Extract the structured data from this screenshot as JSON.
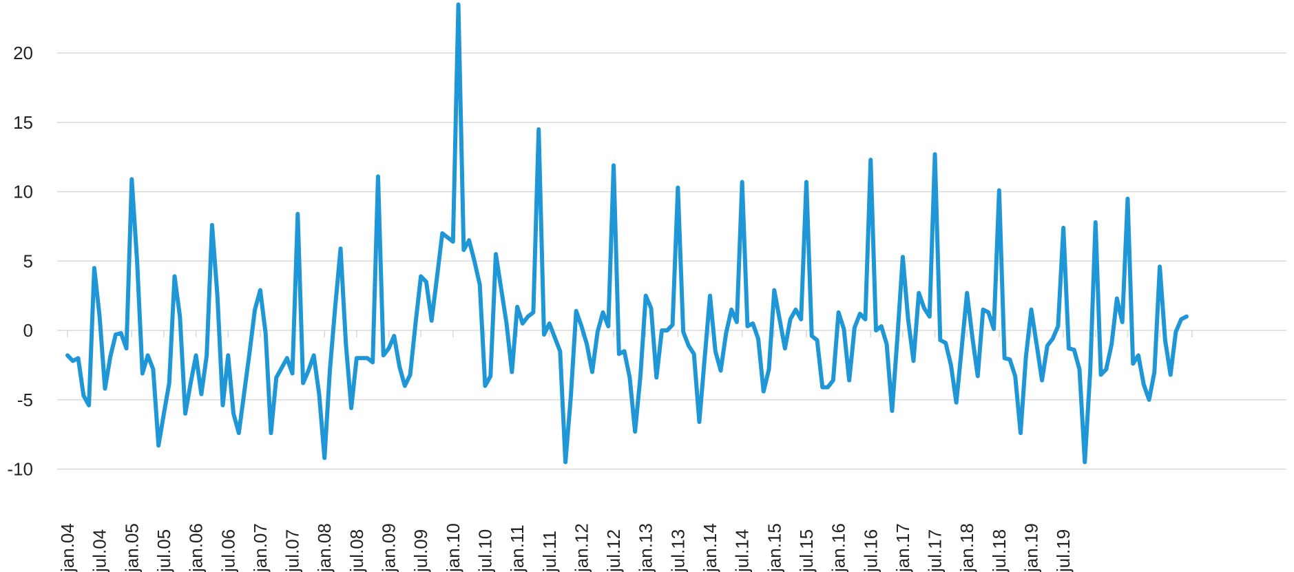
{
  "chart_data": {
    "type": "line",
    "title": "",
    "xlabel": "",
    "ylabel": "",
    "ylim": [
      -10,
      23.5
    ],
    "y_ticks": [
      20,
      15,
      10,
      5,
      0,
      -5,
      -10
    ],
    "y_tick_labels": [
      "20",
      "15",
      "10",
      "5",
      "0",
      "-5",
      "-10"
    ],
    "x_tick_labels": [
      "jan.04",
      "jul.04",
      "jan.05",
      "jul.05",
      "jan.06",
      "jul.06",
      "jan.07",
      "jul.07",
      "jan.08",
      "jul.08",
      "jan.09",
      "jul.09",
      "jan.10",
      "jul.10",
      "jan.11",
      "jul.11",
      "jan.12",
      "jul.12",
      "jan.13",
      "jul.13",
      "jan.14",
      "jul.14",
      "jan.15",
      "jul.15",
      "jan.16",
      "jul.16",
      "jan.17",
      "jul.17",
      "jan.18",
      "jul.18",
      "jan.19",
      "jul.19"
    ],
    "grid": true,
    "legend": "none",
    "series": [
      {
        "color": "#1f96d6",
        "values": [
          -1.8,
          -2.2,
          -2.0,
          -4.7,
          -5.4,
          4.5,
          1.0,
          -4.2,
          -1.9,
          -0.3,
          -0.2,
          -1.3,
          10.9,
          5.0,
          -3.1,
          -1.8,
          -2.8,
          -8.3,
          -6.0,
          -3.8,
          3.9,
          1.0,
          -6.0,
          -3.8,
          -1.8,
          -4.6,
          -1.8,
          7.6,
          2.5,
          -5.4,
          -1.8,
          -6.0,
          -7.4,
          -4.5,
          -1.6,
          1.5,
          2.9,
          -0.2,
          -7.4,
          -3.4,
          -2.7,
          -2.0,
          -3.1,
          8.4,
          -3.8,
          -2.9,
          -1.8,
          -4.6,
          -9.2,
          -2.9,
          1.7,
          5.9,
          -1.0,
          -5.6,
          -2.0,
          -2.0,
          -2.0,
          -2.3,
          11.1,
          -1.8,
          -1.3,
          -0.4,
          -2.6,
          -4.0,
          -3.2,
          0.5,
          3.9,
          3.5,
          0.7,
          3.8,
          7.0,
          6.7,
          6.4,
          23.5,
          5.8,
          6.5,
          5.0,
          3.3,
          -4.0,
          -3.3,
          5.5,
          3.0,
          0.5,
          -3.0,
          1.7,
          0.5,
          1.0,
          1.3,
          14.5,
          -0.3,
          0.5,
          -0.5,
          -1.5,
          -9.5,
          -4.8,
          1.4,
          0.3,
          -1.0,
          -3.0,
          -0.1,
          1.3,
          0.3,
          11.9,
          -1.7,
          -1.5,
          -3.4,
          -7.3,
          -3.3,
          2.5,
          1.6,
          -3.4,
          0.0,
          0.0,
          0.4,
          10.3,
          -0.1,
          -1.1,
          -1.7,
          -6.6,
          -2.0,
          2.5,
          -1.5,
          -2.9,
          -0.2,
          1.5,
          0.6,
          10.7,
          0.3,
          0.5,
          -0.6,
          -4.4,
          -2.8,
          2.9,
          0.8,
          -1.3,
          0.8,
          1.5,
          0.8,
          10.7,
          -0.4,
          -0.7,
          -4.1,
          -4.1,
          -3.6,
          1.3,
          0.1,
          -3.6,
          0.2,
          1.2,
          0.8,
          12.3,
          0.0,
          0.3,
          -1.0,
          -5.8,
          -0.5,
          5.3,
          0.8,
          -2.2,
          2.7,
          1.6,
          1.0,
          12.7,
          -0.7,
          -0.9,
          -2.5,
          -5.2,
          -1.3,
          2.7,
          -0.5,
          -3.3,
          1.5,
          1.3,
          0.1,
          10.1,
          -2.0,
          -2.1,
          -3.3,
          -7.4,
          -1.9,
          1.5,
          -1.0,
          -3.6,
          -1.1,
          -0.6,
          0.3,
          7.4,
          -1.3,
          -1.4,
          -2.8,
          -9.5,
          -3.0,
          7.8,
          -3.2,
          -2.8,
          -1.0,
          2.3,
          0.6,
          9.5,
          -2.4,
          -1.8,
          -3.9,
          -5.0,
          -3.0,
          4.6,
          -0.7,
          -3.2,
          -0.1,
          0.8,
          1.0
        ]
      }
    ]
  }
}
